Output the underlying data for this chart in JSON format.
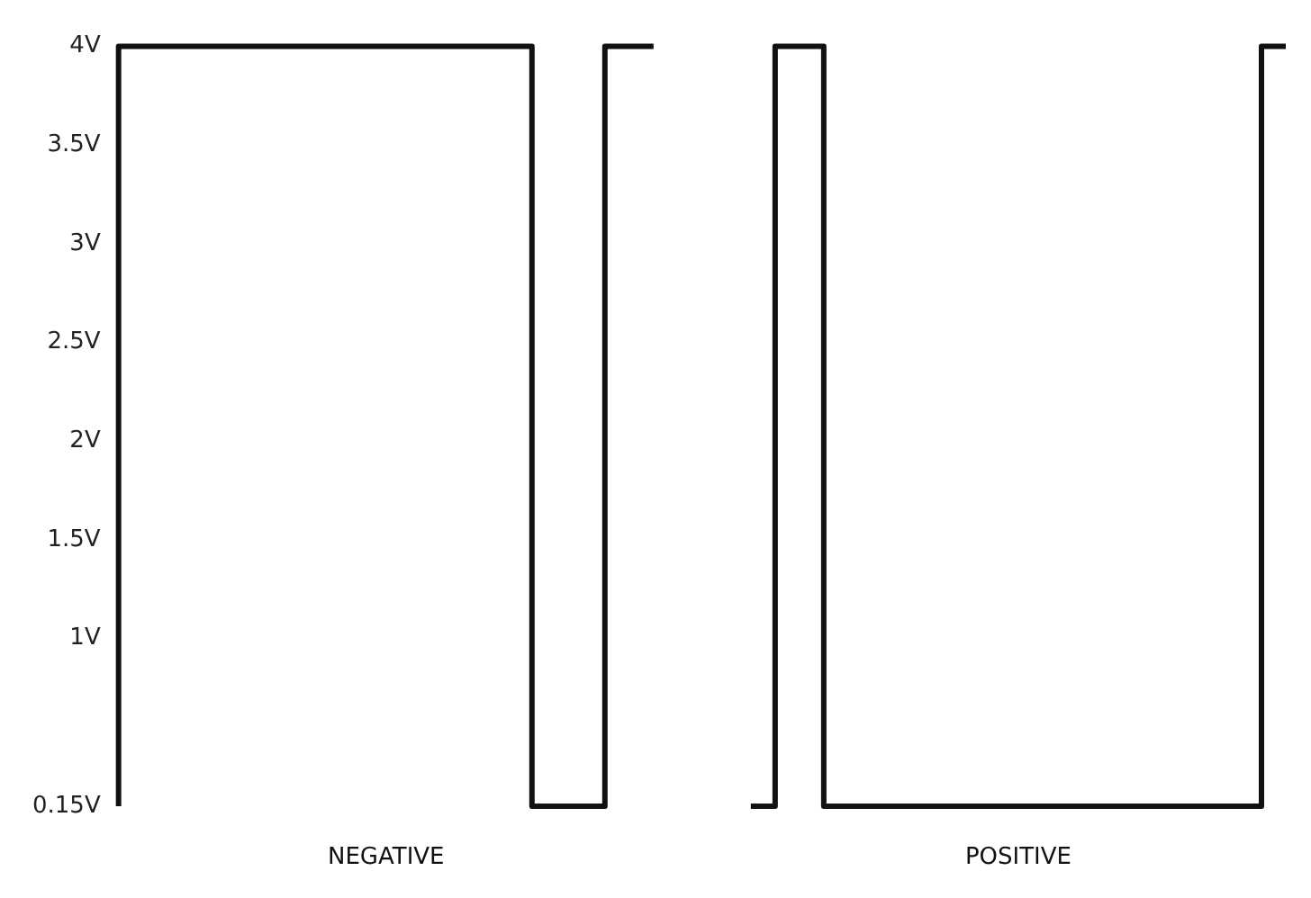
{
  "chart_data": {
    "type": "step",
    "categories": [
      null,
      null,
      null,
      null,
      null,
      null,
      null,
      null,
      null,
      null,
      null,
      null,
      null,
      null,
      null,
      null,
      null,
      null,
      null,
      null,
      null,
      null,
      null,
      null,
      null,
      null,
      null,
      null,
      null,
      null,
      null,
      null,
      null,
      null,
      null,
      null,
      null,
      null,
      null,
      null,
      null,
      null,
      null,
      null,
      null,
      null,
      null,
      null,
      null
    ],
    "annotations": [
      "NEGATIVE",
      "POSITIVE"
    ],
    "series": [
      {
        "color": "#111111",
        "values": [
          0.15,
          4,
          4,
          4,
          4,
          4,
          4,
          4,
          4,
          4,
          4,
          4,
          4,
          4,
          4,
          4,
          4,
          4,
          0.15,
          0.15,
          0.15,
          4,
          4,
          null,
          null,
          null,
          null,
          null,
          null,
          null,
          null,
          null,
          null,
          null,
          null,
          null,
          null,
          null,
          null,
          null,
          null,
          null,
          null,
          null,
          null,
          null,
          null,
          null,
          null
        ]
      },
      {
        "color": "#111111",
        "values": [
          null,
          null,
          null,
          null,
          null,
          null,
          null,
          null,
          null,
          null,
          null,
          null,
          null,
          null,
          null,
          null,
          null,
          null,
          null,
          null,
          null,
          null,
          null,
          null,
          null,
          null,
          0.15,
          0.15,
          4,
          4,
          0.15,
          0.15,
          0.15,
          0.15,
          0.15,
          0.15,
          0.15,
          0.15,
          0.15,
          0.15,
          0.15,
          0.15,
          0.15,
          0.15,
          0.15,
          0.15,
          0.15,
          0.15,
          4
        ]
      }
    ],
    "ylim": [
      0.15,
      4
    ],
    "yticks": [
      {
        "value": 0.15,
        "label": "0.15V"
      },
      {
        "value": 1,
        "label": "1V"
      },
      {
        "value": 1.5,
        "label": "1.5V"
      },
      {
        "value": 2,
        "label": "2V"
      },
      {
        "value": 2.5,
        "label": "2.5V"
      },
      {
        "value": 3,
        "label": "3V"
      },
      {
        "value": 3.5,
        "label": "3.5V"
      },
      {
        "value": 4,
        "label": "4V"
      }
    ],
    "tick_labels": "y",
    "grid": false,
    "marker": "none",
    "line_style": "solid"
  }
}
